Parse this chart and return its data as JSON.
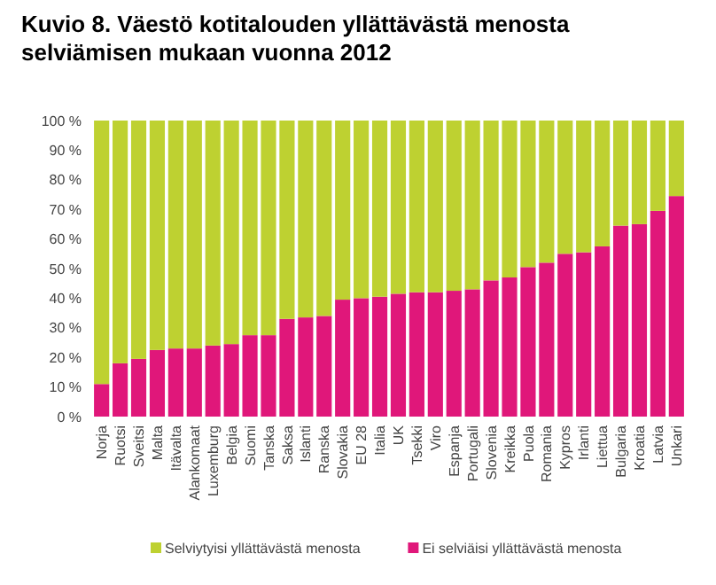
{
  "chart_data": {
    "type": "bar",
    "title": "Kuvio 8. Väestö kotitalouden yllättävästä menosta selviämisen mukaan vuonna 2012",
    "stacked": true,
    "categories": [
      "Norja",
      "Ruotsi",
      "Sveitsi",
      "Malta",
      "Itävalta",
      "Alankomaat",
      "Luxemburg",
      "Belgia",
      "Suomi",
      "Tanska",
      "Saksa",
      "Islanti",
      "Ranska",
      "Slovakia",
      "EU 28",
      "Italia",
      "UK",
      "Tsekki",
      "Viro",
      "Espanja",
      "Portugali",
      "Slovenia",
      "Kreikka",
      "Puola",
      "Romania",
      "Kypros",
      "Irlanti",
      "Liettua",
      "Bulgaria",
      "Kroatia",
      "Latvia",
      "Unkari"
    ],
    "series": [
      {
        "name": "Ei selviäisi yllättävästä menosta",
        "color": "#e0177a",
        "values": [
          11,
          18,
          19.5,
          22.5,
          23,
          23,
          24,
          24.5,
          27.5,
          27.5,
          33,
          33.5,
          34,
          39.5,
          40,
          40.5,
          41.5,
          42,
          42,
          42.5,
          43,
          46,
          47,
          50.5,
          52,
          55,
          55.5,
          57.5,
          64.5,
          65,
          69.5,
          74.5
        ]
      },
      {
        "name": "Selviytyisi yllättävästä menosta",
        "color": "#bed131",
        "values": [
          89,
          82,
          80.5,
          77.5,
          77,
          77,
          76,
          75.5,
          72.5,
          72.5,
          67,
          66.5,
          66,
          60.5,
          60,
          59.5,
          58.5,
          58,
          58,
          57.5,
          57,
          54,
          53,
          49.5,
          48,
          45,
          44.5,
          42.5,
          35.5,
          35,
          30.5,
          25.5
        ]
      }
    ],
    "ylim": [
      0,
      100
    ],
    "yticks": [
      {
        "value": 0,
        "label": "0 %"
      },
      {
        "value": 10,
        "label": "10 %"
      },
      {
        "value": 20,
        "label": "20 %"
      },
      {
        "value": 30,
        "label": "30 %"
      },
      {
        "value": 40,
        "label": "40 %"
      },
      {
        "value": 50,
        "label": "50 %"
      },
      {
        "value": 60,
        "label": "60 %"
      },
      {
        "value": 70,
        "label": "70 %"
      },
      {
        "value": 80,
        "label": "80 %"
      },
      {
        "value": 90,
        "label": "90 %"
      },
      {
        "value": 100,
        "label": "100 %"
      }
    ],
    "grid": false,
    "legend": "bottom"
  }
}
